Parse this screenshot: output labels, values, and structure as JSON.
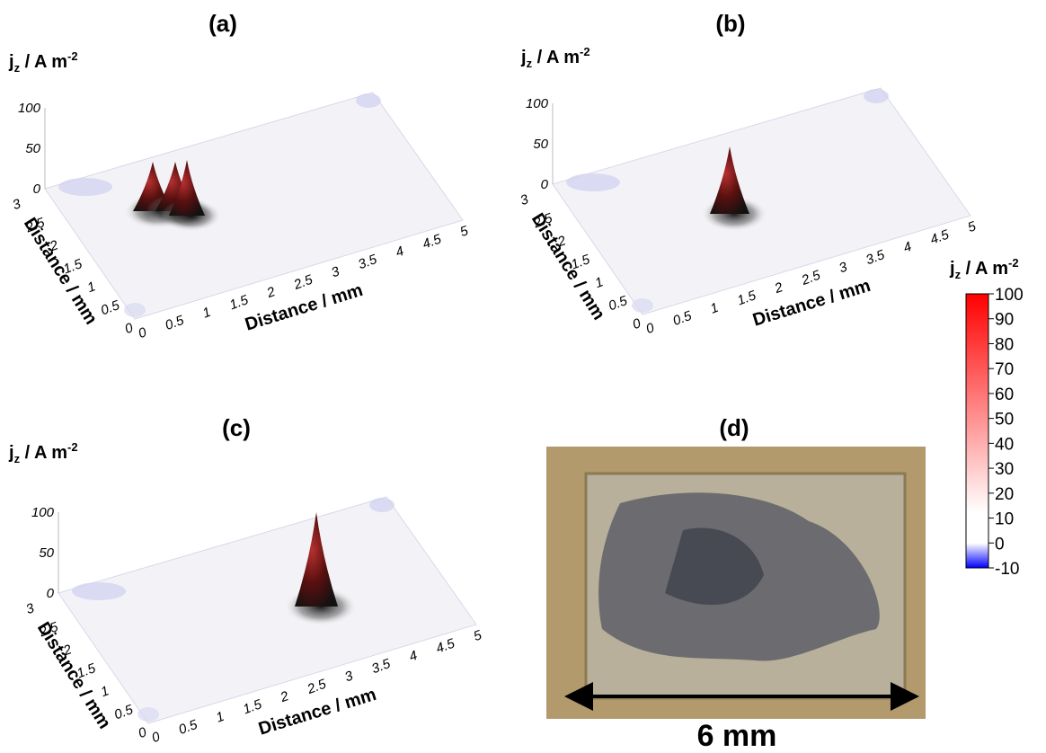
{
  "panels": [
    {
      "label": "(a)",
      "z_axis_title": {
        "base": "j",
        "sub": "z",
        "unit": " / A m",
        "sup": "-2"
      },
      "z_ticks": [
        "100",
        "50",
        "0"
      ],
      "x_ticks": [
        "0",
        "0.5",
        "1",
        "1.5",
        "2",
        "2.5",
        "3",
        "3.5",
        "4",
        "4.5",
        "5"
      ],
      "y_ticks": [
        "3",
        "2.5",
        "2",
        "1.5",
        "1",
        "0.5",
        "0"
      ],
      "x_axis_title": "Distance / mm",
      "y_axis_title": "Distance / mm"
    },
    {
      "label": "(b)",
      "z_axis_title": {
        "base": "j",
        "sub": "z",
        "unit": " / A m",
        "sup": "-2"
      },
      "z_ticks": [
        "100",
        "50",
        "0"
      ],
      "x_ticks": [
        "0",
        "0.5",
        "1",
        "1.5",
        "2",
        "2.5",
        "3",
        "3.5",
        "4",
        "4.5",
        "5"
      ],
      "y_ticks": [
        "3",
        "2.5",
        "2",
        "1.5",
        "1",
        "0.5",
        "0"
      ],
      "x_axis_title": "Distance / mm",
      "y_axis_title": "Distance / mm"
    },
    {
      "label": "(c)",
      "z_axis_title": {
        "base": "j",
        "sub": "z",
        "unit": " / A m",
        "sup": "-2"
      },
      "z_ticks": [
        "100",
        "50",
        "0"
      ],
      "x_ticks": [
        "0",
        "0.5",
        "1",
        "1.5",
        "2",
        "2.5",
        "3",
        "3.5",
        "4",
        "4.5",
        "5"
      ],
      "y_ticks": [
        "3",
        "2.5",
        "2",
        "1.5",
        "1",
        "0.5",
        "0"
      ],
      "x_axis_title": "Distance / mm",
      "y_axis_title": "Distance / mm"
    }
  ],
  "photo": {
    "label": "(d)",
    "scale": "6 mm"
  },
  "colorbar": {
    "title": {
      "base": "j",
      "sub": "z",
      "unit": " / A m",
      "sup": "-2"
    },
    "ticks": [
      "100",
      "90",
      "80",
      "70",
      "60",
      "50",
      "40",
      "30",
      "20",
      "10",
      "0",
      "-10"
    ]
  }
}
